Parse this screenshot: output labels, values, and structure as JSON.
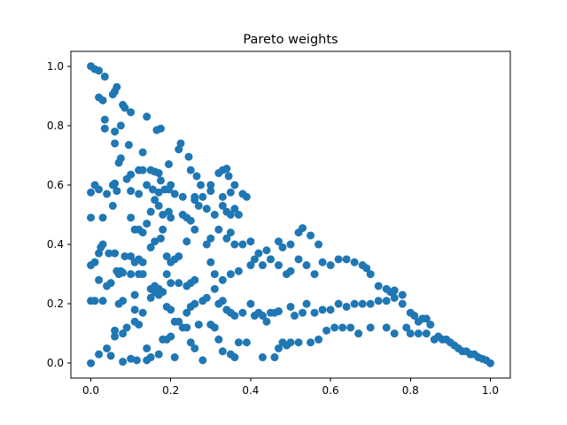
{
  "chart_data": {
    "type": "scatter",
    "title": "Pareto weights",
    "xlabel": "",
    "ylabel": "",
    "xlim": [
      -0.05,
      1.05
    ],
    "ylim": [
      -0.05,
      1.05
    ],
    "grid": false,
    "marker_color": "#1f77b4",
    "x_ticks": [
      0.0,
      0.2,
      0.4,
      0.6,
      0.8,
      1.0
    ],
    "y_ticks": [
      0.0,
      0.2,
      0.4,
      0.6,
      0.8,
      1.0
    ],
    "x_tick_labels": [
      "0.0",
      "0.2",
      "0.4",
      "0.6",
      "0.8",
      "1.0"
    ],
    "y_tick_labels": [
      "0.0",
      "0.2",
      "0.4",
      "0.6",
      "0.8",
      "1.0"
    ],
    "points": [
      [
        0.0,
        1.0
      ],
      [
        0.01,
        0.99
      ],
      [
        0.02,
        0.985
      ],
      [
        0.035,
        0.965
      ],
      [
        0.02,
        0.895
      ],
      [
        0.03,
        0.885
      ],
      [
        0.055,
        0.905
      ],
      [
        0.06,
        0.915
      ],
      [
        0.065,
        0.93
      ],
      [
        0.08,
        0.87
      ],
      [
        0.085,
        0.86
      ],
      [
        0.035,
        0.82
      ],
      [
        0.035,
        0.79
      ],
      [
        0.06,
        0.78
      ],
      [
        0.075,
        0.8
      ],
      [
        0.1,
        0.845
      ],
      [
        0.14,
        0.83
      ],
      [
        0.165,
        0.785
      ],
      [
        0.175,
        0.79
      ],
      [
        0.06,
        0.74
      ],
      [
        0.095,
        0.735
      ],
      [
        0.075,
        0.69
      ],
      [
        0.07,
        0.675
      ],
      [
        0.0,
        0.575
      ],
      [
        0.01,
        0.6
      ],
      [
        0.02,
        0.585
      ],
      [
        0.04,
        0.57
      ],
      [
        0.055,
        0.6
      ],
      [
        0.06,
        0.605
      ],
      [
        0.065,
        0.58
      ],
      [
        0.09,
        0.62
      ],
      [
        0.1,
        0.635
      ],
      [
        0.12,
        0.65
      ],
      [
        0.13,
        0.65
      ],
      [
        0.13,
        0.71
      ],
      [
        0.15,
        0.65
      ],
      [
        0.16,
        0.645
      ],
      [
        0.17,
        0.64
      ],
      [
        0.175,
        0.615
      ],
      [
        0.195,
        0.67
      ],
      [
        0.2,
        0.6
      ],
      [
        0.22,
        0.72
      ],
      [
        0.225,
        0.74
      ],
      [
        0.245,
        0.695
      ],
      [
        0.25,
        0.65
      ],
      [
        0.265,
        0.63
      ],
      [
        0.275,
        0.6
      ],
      [
        0.3,
        0.6
      ],
      [
        0.32,
        0.64
      ],
      [
        0.33,
        0.65
      ],
      [
        0.34,
        0.655
      ],
      [
        0.345,
        0.63
      ],
      [
        0.36,
        0.6
      ],
      [
        0.0,
        0.49
      ],
      [
        0.03,
        0.49
      ],
      [
        0.055,
        0.53
      ],
      [
        0.1,
        0.58
      ],
      [
        0.12,
        0.57
      ],
      [
        0.14,
        0.6
      ],
      [
        0.155,
        0.585
      ],
      [
        0.17,
        0.575
      ],
      [
        0.185,
        0.585
      ],
      [
        0.195,
        0.585
      ],
      [
        0.21,
        0.57
      ],
      [
        0.23,
        0.56
      ],
      [
        0.26,
        0.56
      ],
      [
        0.28,
        0.56
      ],
      [
        0.3,
        0.58
      ],
      [
        0.33,
        0.56
      ],
      [
        0.35,
        0.575
      ],
      [
        0.38,
        0.57
      ],
      [
        0.39,
        0.56
      ],
      [
        0.1,
        0.49
      ],
      [
        0.11,
        0.45
      ],
      [
        0.12,
        0.45
      ],
      [
        0.13,
        0.44
      ],
      [
        0.14,
        0.47
      ],
      [
        0.15,
        0.51
      ],
      [
        0.16,
        0.55
      ],
      [
        0.17,
        0.53
      ],
      [
        0.18,
        0.5
      ],
      [
        0.195,
        0.51
      ],
      [
        0.2,
        0.49
      ],
      [
        0.23,
        0.5
      ],
      [
        0.24,
        0.49
      ],
      [
        0.25,
        0.48
      ],
      [
        0.26,
        0.55
      ],
      [
        0.27,
        0.53
      ],
      [
        0.29,
        0.52
      ],
      [
        0.31,
        0.5
      ],
      [
        0.33,
        0.53
      ],
      [
        0.34,
        0.51
      ],
      [
        0.35,
        0.5
      ],
      [
        0.36,
        0.52
      ],
      [
        0.37,
        0.5
      ],
      [
        0.02,
        0.37
      ],
      [
        0.025,
        0.39
      ],
      [
        0.03,
        0.4
      ],
      [
        0.045,
        0.37
      ],
      [
        0.06,
        0.37
      ],
      [
        0.065,
        0.31
      ],
      [
        0.075,
        0.31
      ],
      [
        0.085,
        0.36
      ],
      [
        0.1,
        0.36
      ],
      [
        0.11,
        0.34
      ],
      [
        0.12,
        0.35
      ],
      [
        0.13,
        0.34
      ],
      [
        0.15,
        0.39
      ],
      [
        0.16,
        0.41
      ],
      [
        0.175,
        0.42
      ],
      [
        0.18,
        0.45
      ],
      [
        0.19,
        0.36
      ],
      [
        0.2,
        0.34
      ],
      [
        0.21,
        0.35
      ],
      [
        0.22,
        0.36
      ],
      [
        0.24,
        0.41
      ],
      [
        0.26,
        0.45
      ],
      [
        0.29,
        0.4
      ],
      [
        0.3,
        0.42
      ],
      [
        0.32,
        0.45
      ],
      [
        0.34,
        0.42
      ],
      [
        0.35,
        0.44
      ],
      [
        0.36,
        0.4
      ],
      [
        0.38,
        0.4
      ],
      [
        0.4,
        0.41
      ],
      [
        0.42,
        0.37
      ],
      [
        0.44,
        0.38
      ],
      [
        0.47,
        0.41
      ],
      [
        0.48,
        0.39
      ],
      [
        0.5,
        0.4
      ],
      [
        0.52,
        0.44
      ],
      [
        0.53,
        0.455
      ],
      [
        0.55,
        0.43
      ],
      [
        0.57,
        0.4
      ],
      [
        0.0,
        0.33
      ],
      [
        0.01,
        0.34
      ],
      [
        0.02,
        0.28
      ],
      [
        0.04,
        0.26
      ],
      [
        0.05,
        0.27
      ],
      [
        0.07,
        0.3
      ],
      [
        0.08,
        0.305
      ],
      [
        0.1,
        0.3
      ],
      [
        0.11,
        0.23
      ],
      [
        0.12,
        0.3
      ],
      [
        0.13,
        0.3
      ],
      [
        0.15,
        0.25
      ],
      [
        0.16,
        0.26
      ],
      [
        0.17,
        0.25
      ],
      [
        0.18,
        0.24
      ],
      [
        0.19,
        0.3
      ],
      [
        0.2,
        0.27
      ],
      [
        0.22,
        0.27
      ],
      [
        0.24,
        0.26
      ],
      [
        0.25,
        0.27
      ],
      [
        0.26,
        0.28
      ],
      [
        0.3,
        0.34
      ],
      [
        0.31,
        0.3
      ],
      [
        0.33,
        0.28
      ],
      [
        0.35,
        0.3
      ],
      [
        0.37,
        0.31
      ],
      [
        0.4,
        0.33
      ],
      [
        0.41,
        0.35
      ],
      [
        0.43,
        0.33
      ],
      [
        0.45,
        0.35
      ],
      [
        0.47,
        0.33
      ],
      [
        0.49,
        0.3
      ],
      [
        0.5,
        0.31
      ],
      [
        0.52,
        0.35
      ],
      [
        0.54,
        0.33
      ],
      [
        0.56,
        0.3
      ],
      [
        0.58,
        0.34
      ],
      [
        0.6,
        0.33
      ],
      [
        0.62,
        0.35
      ],
      [
        0.64,
        0.35
      ],
      [
        0.66,
        0.34
      ],
      [
        0.68,
        0.33
      ],
      [
        0.69,
        0.32
      ],
      [
        0.7,
        0.3
      ],
      [
        0.72,
        0.26
      ],
      [
        0.74,
        0.25
      ],
      [
        0.75,
        0.24
      ],
      [
        0.76,
        0.245
      ],
      [
        0.78,
        0.23
      ],
      [
        0.0,
        0.21
      ],
      [
        0.01,
        0.21
      ],
      [
        0.03,
        0.21
      ],
      [
        0.07,
        0.2
      ],
      [
        0.08,
        0.21
      ],
      [
        0.11,
        0.18
      ],
      [
        0.13,
        0.17
      ],
      [
        0.15,
        0.22
      ],
      [
        0.16,
        0.24
      ],
      [
        0.17,
        0.23
      ],
      [
        0.19,
        0.19
      ],
      [
        0.2,
        0.18
      ],
      [
        0.21,
        0.14
      ],
      [
        0.22,
        0.14
      ],
      [
        0.24,
        0.17
      ],
      [
        0.25,
        0.19
      ],
      [
        0.26,
        0.2
      ],
      [
        0.28,
        0.21
      ],
      [
        0.29,
        0.22
      ],
      [
        0.31,
        0.25
      ],
      [
        0.32,
        0.2
      ],
      [
        0.33,
        0.21
      ],
      [
        0.34,
        0.18
      ],
      [
        0.35,
        0.17
      ],
      [
        0.36,
        0.16
      ],
      [
        0.38,
        0.17
      ],
      [
        0.4,
        0.2
      ],
      [
        0.41,
        0.16
      ],
      [
        0.42,
        0.17
      ],
      [
        0.43,
        0.16
      ],
      [
        0.44,
        0.14
      ],
      [
        0.45,
        0.17
      ],
      [
        0.46,
        0.17
      ],
      [
        0.47,
        0.175
      ],
      [
        0.5,
        0.19
      ],
      [
        0.51,
        0.16
      ],
      [
        0.53,
        0.17
      ],
      [
        0.54,
        0.2
      ],
      [
        0.56,
        0.17
      ],
      [
        0.58,
        0.18
      ],
      [
        0.6,
        0.18
      ],
      [
        0.62,
        0.2
      ],
      [
        0.64,
        0.19
      ],
      [
        0.66,
        0.2
      ],
      [
        0.68,
        0.2
      ],
      [
        0.7,
        0.2
      ],
      [
        0.72,
        0.21
      ],
      [
        0.74,
        0.21
      ],
      [
        0.76,
        0.22
      ],
      [
        0.78,
        0.2
      ],
      [
        0.8,
        0.17
      ],
      [
        0.81,
        0.16
      ],
      [
        0.82,
        0.14
      ],
      [
        0.83,
        0.15
      ],
      [
        0.84,
        0.15
      ],
      [
        0.85,
        0.13
      ],
      [
        0.02,
        0.03
      ],
      [
        0.04,
        0.05
      ],
      [
        0.06,
        0.09
      ],
      [
        0.06,
        0.11
      ],
      [
        0.08,
        0.1
      ],
      [
        0.09,
        0.12
      ],
      [
        0.11,
        0.14
      ],
      [
        0.12,
        0.13
      ],
      [
        0.14,
        0.05
      ],
      [
        0.14,
        0.01
      ],
      [
        0.15,
        0.02
      ],
      [
        0.17,
        0.03
      ],
      [
        0.18,
        0.08
      ],
      [
        0.19,
        0.08
      ],
      [
        0.2,
        0.09
      ],
      [
        0.21,
        0.02
      ],
      [
        0.23,
        0.12
      ],
      [
        0.24,
        0.12
      ],
      [
        0.25,
        0.07
      ],
      [
        0.26,
        0.05
      ],
      [
        0.27,
        0.13
      ],
      [
        0.28,
        0.01
      ],
      [
        0.3,
        0.13
      ],
      [
        0.31,
        0.12
      ],
      [
        0.32,
        0.08
      ],
      [
        0.33,
        0.04
      ],
      [
        0.35,
        0.03
      ],
      [
        0.36,
        0.02
      ],
      [
        0.37,
        0.07
      ],
      [
        0.39,
        0.07
      ],
      [
        0.43,
        0.02
      ],
      [
        0.46,
        0.02
      ],
      [
        0.47,
        0.05
      ],
      [
        0.48,
        0.07
      ],
      [
        0.49,
        0.06
      ],
      [
        0.5,
        0.07
      ],
      [
        0.52,
        0.07
      ],
      [
        0.55,
        0.07
      ],
      [
        0.57,
        0.08
      ],
      [
        0.59,
        0.11
      ],
      [
        0.61,
        0.12
      ],
      [
        0.63,
        0.12
      ],
      [
        0.65,
        0.12
      ],
      [
        0.67,
        0.1
      ],
      [
        0.7,
        0.12
      ],
      [
        0.74,
        0.12
      ],
      [
        0.76,
        0.1
      ],
      [
        0.79,
        0.12
      ],
      [
        0.8,
        0.1
      ],
      [
        0.82,
        0.1
      ],
      [
        0.84,
        0.1
      ],
      [
        0.86,
        0.08
      ],
      [
        0.87,
        0.09
      ],
      [
        0.88,
        0.08
      ],
      [
        0.89,
        0.08
      ],
      [
        0.9,
        0.07
      ],
      [
        0.91,
        0.06
      ],
      [
        0.92,
        0.05
      ],
      [
        0.93,
        0.04
      ],
      [
        0.94,
        0.04
      ],
      [
        0.95,
        0.03
      ],
      [
        0.96,
        0.03
      ],
      [
        0.97,
        0.02
      ],
      [
        0.98,
        0.015
      ],
      [
        0.99,
        0.01
      ],
      [
        1.0,
        0.0
      ],
      [
        0.0,
        0.0
      ],
      [
        0.05,
        0.025
      ],
      [
        0.08,
        0.005
      ],
      [
        0.1,
        0.015
      ],
      [
        0.115,
        0.01
      ]
    ]
  }
}
